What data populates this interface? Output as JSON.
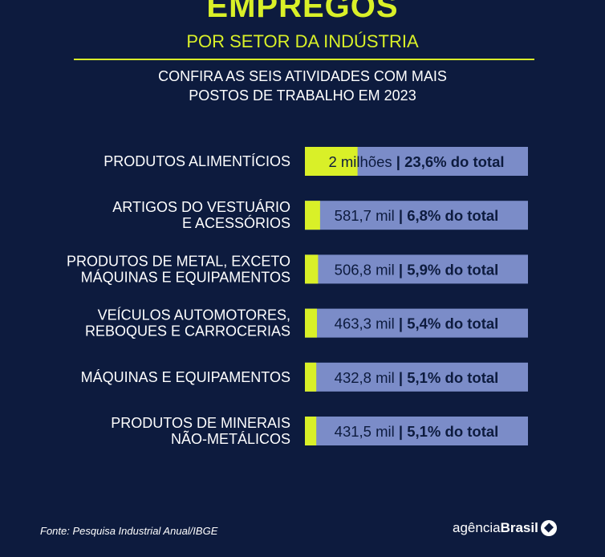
{
  "header": {
    "title": "EMPREGOS",
    "subtitle": "POR SETOR DA INDÚSTRIA",
    "intro_line1": "CONFIRA AS SEIS ATIVIDADES COM MAIS",
    "intro_line2": "POSTOS DE TRABALHO EM 2023"
  },
  "colors": {
    "background": "#0d1b3e",
    "accent": "#d9f028",
    "bar_track": "#7b8cc8",
    "bar_text": "#0d1b3e"
  },
  "chart_data": {
    "type": "bar",
    "categories": [
      [
        "PRODUTOS ALIMENTÍCIOS"
      ],
      [
        "ARTIGOS DO VESTUÁRIO",
        "E ACESSÓRIOS"
      ],
      [
        "PRODUTOS DE METAL, EXCETO",
        "MÁQUINAS E EQUIPAMENTOS"
      ],
      [
        "VEÍCULOS AUTOMOTORES,",
        "REBOQUES E CARROCERIAS"
      ],
      [
        "MÁQUINAS E EQUIPAMENTOS"
      ],
      [
        "PRODUTOS DE MINERAIS",
        "NÃO-METÁLICOS"
      ]
    ],
    "values": [
      23.6,
      6.8,
      5.9,
      5.4,
      5.1,
      5.1
    ],
    "value_labels": [
      "2 milhões",
      "581,7 mil",
      "506,8 mil",
      "463,3 mil",
      "432,8 mil",
      "431,5 mil"
    ],
    "share_labels": [
      "23,6% do total",
      "6,8% do total",
      "5,9% do total",
      "5,4% do total",
      "5,1% do total",
      "5,1% do total"
    ],
    "separator": "|",
    "unit": "% do total",
    "xlim": [
      0,
      100
    ],
    "orientation": "horizontal"
  },
  "footer": {
    "source": "Fonte: Pesquisa Industrial Anual/IBGE",
    "logo_prefix": "agência",
    "logo_brand": "Brasil"
  }
}
